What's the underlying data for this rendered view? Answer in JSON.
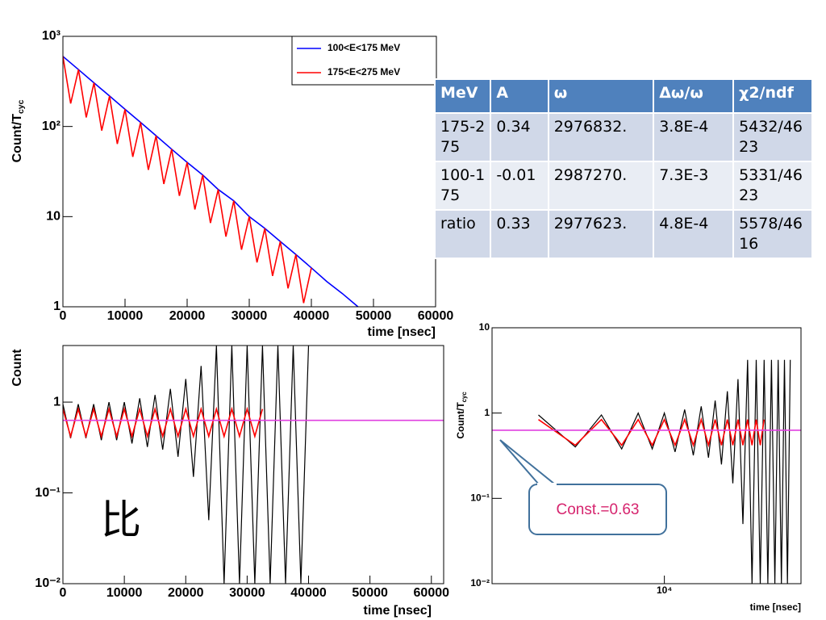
{
  "chart_data": [
    {
      "type": "line",
      "xlabel": "time [nsec]",
      "ylabel": "Count/T",
      "ylabel_sub": "cyc",
      "xscale": "linear",
      "yscale": "log",
      "xlim": [
        0,
        60000
      ],
      "ylim": [
        1,
        1000
      ],
      "xticks": [
        0,
        10000,
        20000,
        30000,
        40000,
        50000,
        60000
      ],
      "yticks": [
        1,
        10,
        {
          "value": 100,
          "label": "10²"
        },
        {
          "value": 1000,
          "label": "10³"
        }
      ],
      "legend": "upper right",
      "series": [
        {
          "name": "100<E<175 MeV",
          "color": "#0000ff",
          "x": [
            0,
            2500,
            5000,
            7500,
            10000,
            12500,
            15000,
            17500,
            20000,
            22500,
            25000,
            27500,
            30000,
            32500,
            35000,
            37500,
            40000,
            42500,
            45000,
            47500
          ],
          "values": [
            600,
            428,
            305,
            218,
            155,
            111,
            79,
            56,
            40,
            29,
            20,
            15,
            10,
            7.4,
            5.3,
            3.8,
            2.7,
            1.9,
            1.4,
            1.0
          ]
        },
        {
          "name": "175<E<275 MeV",
          "color": "#ff0000",
          "x": [
            0,
            1250,
            2500,
            3750,
            5000,
            6250,
            7500,
            8750,
            10000,
            11250,
            12500,
            13750,
            15000,
            16250,
            17500,
            18750,
            20000,
            21250,
            22500,
            23750,
            25000,
            26250,
            27500,
            28750,
            30000,
            31250,
            32500,
            33750,
            35000,
            36250,
            37500,
            38750,
            40000
          ],
          "values": [
            600,
            180,
            428,
            126,
            305,
            90,
            218,
            64,
            155,
            46,
            111,
            33,
            79,
            23,
            56,
            17,
            40,
            12,
            29,
            8.5,
            20,
            6,
            15,
            4.3,
            10,
            3.1,
            7.4,
            2.2,
            5.3,
            1.6,
            3.8,
            1.1,
            2.7
          ]
        }
      ]
    },
    {
      "type": "line",
      "xlabel": "time [nsec]",
      "ylabel": "Count",
      "annotation": "比",
      "xscale": "linear",
      "yscale": "log",
      "xlim": [
        0,
        62000
      ],
      "ylim": [
        0.01,
        4.2
      ],
      "xticks": [
        0,
        10000,
        20000,
        30000,
        40000,
        50000,
        60000
      ],
      "yticks": [
        {
          "value": 0.01,
          "label": "10⁻²"
        },
        {
          "value": 0.1,
          "label": "10⁻¹"
        },
        1
      ],
      "series": [
        {
          "color": "#000000",
          "x": [
            0,
            1250,
            2500,
            3750,
            5000,
            6250,
            7500,
            8750,
            10000,
            11250,
            12500,
            13750,
            15000,
            16250,
            17500,
            18750,
            20000,
            21250,
            22500,
            23750,
            25000,
            26250,
            27500,
            28750,
            30000,
            31250,
            32500,
            33750,
            35000,
            36250,
            37500,
            38750,
            40000
          ],
          "values": [
            0.95,
            0.4,
            0.95,
            0.4,
            0.95,
            0.38,
            1.0,
            0.38,
            1.0,
            0.35,
            1.1,
            0.32,
            1.2,
            0.3,
            1.4,
            0.25,
            1.8,
            0.15,
            2.5,
            0.05,
            4.2,
            0.01,
            4.2,
            0.01,
            4.2,
            0.01,
            4.2,
            0.01,
            4.2,
            0.01,
            4.2,
            0.01,
            4.2
          ]
        },
        {
          "color": "#ff0000",
          "x": [
            0,
            1250,
            2500,
            3750,
            5000,
            6250,
            7500,
            8750,
            10000,
            11250,
            12500,
            13750,
            15000,
            16250,
            17500,
            18750,
            20000,
            21250,
            22500,
            23750,
            25000,
            26250,
            27500,
            28750,
            30000,
            31250,
            32500
          ],
          "values": [
            0.84,
            0.42,
            0.84,
            0.42,
            0.84,
            0.42,
            0.84,
            0.42,
            0.84,
            0.42,
            0.84,
            0.42,
            0.84,
            0.42,
            0.84,
            0.42,
            0.84,
            0.42,
            0.84,
            0.42,
            0.84,
            0.42,
            0.84,
            0.42,
            0.84,
            0.42,
            0.84
          ]
        },
        {
          "color": "#e040e0",
          "x": [
            0,
            62000
          ],
          "values": [
            0.63,
            0.63
          ]
        }
      ]
    },
    {
      "type": "line",
      "xlabel": "time [nsec]",
      "ylabel": "Count/T",
      "ylabel_sub": "cyc",
      "annotation": "Const.=0.63",
      "xscale": "log",
      "yscale": "log",
      "xlim": [
        1500,
        45000
      ],
      "ylim": [
        0.01,
        10
      ],
      "xticks": [
        {
          "value": 10000,
          "label": "10⁴"
        }
      ],
      "yticks": [
        {
          "value": 0.01,
          "label": "10⁻²"
        },
        {
          "value": 0.1,
          "label": "10⁻¹"
        },
        1,
        10
      ],
      "series": [
        {
          "color": "#000000",
          "x": [
            2500,
            3750,
            5000,
            6250,
            7500,
            8750,
            10000,
            11250,
            12500,
            13750,
            15000,
            16250,
            17500,
            18750,
            20000,
            21250,
            22500,
            23750,
            25000,
            26250,
            27500,
            28750,
            30000,
            31250,
            32500,
            33750,
            35000,
            36250,
            37500,
            38750,
            40000
          ],
          "values": [
            0.95,
            0.4,
            0.95,
            0.38,
            1.0,
            0.38,
            1.0,
            0.35,
            1.1,
            0.32,
            1.2,
            0.3,
            1.4,
            0.25,
            1.8,
            0.15,
            2.5,
            0.05,
            4.2,
            0.01,
            4.2,
            0.01,
            4.2,
            0.01,
            4.2,
            0.01,
            4.2,
            0.01,
            4.2,
            0.01,
            4.2
          ]
        },
        {
          "color": "#ff0000",
          "x": [
            2500,
            3750,
            5000,
            6250,
            7500,
            8750,
            10000,
            11250,
            12500,
            13750,
            15000,
            16250,
            17500,
            18750,
            20000,
            21250,
            22500,
            23750,
            25000,
            26250,
            27500,
            28750,
            30000
          ],
          "values": [
            0.84,
            0.42,
            0.84,
            0.42,
            0.84,
            0.42,
            0.84,
            0.42,
            0.84,
            0.42,
            0.84,
            0.42,
            0.84,
            0.42,
            0.84,
            0.42,
            0.84,
            0.42,
            0.84,
            0.42,
            0.84,
            0.42,
            0.84
          ]
        },
        {
          "color": "#e040e0",
          "x": [
            1500,
            45000
          ],
          "values": [
            0.63,
            0.63
          ]
        }
      ]
    }
  ],
  "table": {
    "header": [
      "MeV",
      "A",
      "ω",
      "Δω/ω",
      "χ2/ndf"
    ],
    "rows": [
      [
        "175-275",
        "0.34",
        "2976832.",
        "3.8E-4",
        "5432/4623"
      ],
      [
        "100-175",
        "-0.01",
        "2987270.",
        "7.3E-3",
        "5331/4623"
      ],
      [
        "ratio",
        "0.33",
        "2977623.",
        "4.8E-4",
        "5578/4616"
      ]
    ]
  }
}
